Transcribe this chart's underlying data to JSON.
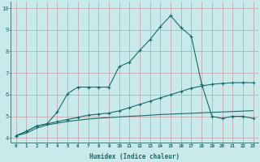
{
  "xlabel": "Humidex (Indice chaleur)",
  "bg_color": "#c8eaea",
  "grid_color": "#c8a8b0",
  "line_color": "#1a6b6b",
  "xlim": [
    -0.5,
    23.5
  ],
  "ylim": [
    3.8,
    10.3
  ],
  "xticks": [
    0,
    1,
    2,
    3,
    4,
    5,
    6,
    7,
    8,
    9,
    10,
    11,
    12,
    13,
    14,
    15,
    16,
    17,
    18,
    19,
    20,
    21,
    22,
    23
  ],
  "yticks": [
    4,
    5,
    6,
    7,
    8,
    9,
    10
  ],
  "series1_x": [
    0,
    1,
    2,
    3,
    4,
    5,
    6,
    7,
    8,
    9,
    10,
    11,
    12,
    13,
    14,
    15,
    16,
    17,
    18,
    19,
    20,
    21,
    22,
    23
  ],
  "series1_y": [
    4.1,
    4.3,
    4.55,
    4.65,
    5.2,
    6.05,
    6.35,
    6.35,
    6.35,
    6.35,
    7.3,
    7.5,
    8.05,
    8.55,
    9.15,
    9.65,
    9.1,
    8.7,
    6.5,
    5.0,
    4.9,
    5.0,
    5.0,
    4.9
  ],
  "series2_x": [
    0,
    1,
    2,
    3,
    4,
    5,
    6,
    7,
    8,
    9,
    10,
    11,
    12,
    13,
    14,
    15,
    16,
    17,
    18,
    19,
    20,
    21,
    22,
    23
  ],
  "series2_y": [
    4.1,
    4.3,
    4.55,
    4.65,
    4.75,
    4.85,
    4.95,
    5.05,
    5.1,
    5.15,
    5.25,
    5.4,
    5.55,
    5.7,
    5.85,
    6.0,
    6.15,
    6.3,
    6.4,
    6.48,
    6.52,
    6.55,
    6.56,
    6.55
  ],
  "series3_x": [
    0,
    1,
    2,
    3,
    4,
    5,
    6,
    7,
    8,
    9,
    10,
    11,
    12,
    13,
    14,
    15,
    16,
    17,
    18,
    19,
    20,
    21,
    22,
    23
  ],
  "series3_y": [
    4.1,
    4.22,
    4.45,
    4.6,
    4.68,
    4.76,
    4.82,
    4.87,
    4.91,
    4.94,
    4.97,
    5.0,
    5.02,
    5.05,
    5.08,
    5.1,
    5.12,
    5.14,
    5.16,
    5.18,
    5.2,
    5.22,
    5.24,
    5.26
  ]
}
